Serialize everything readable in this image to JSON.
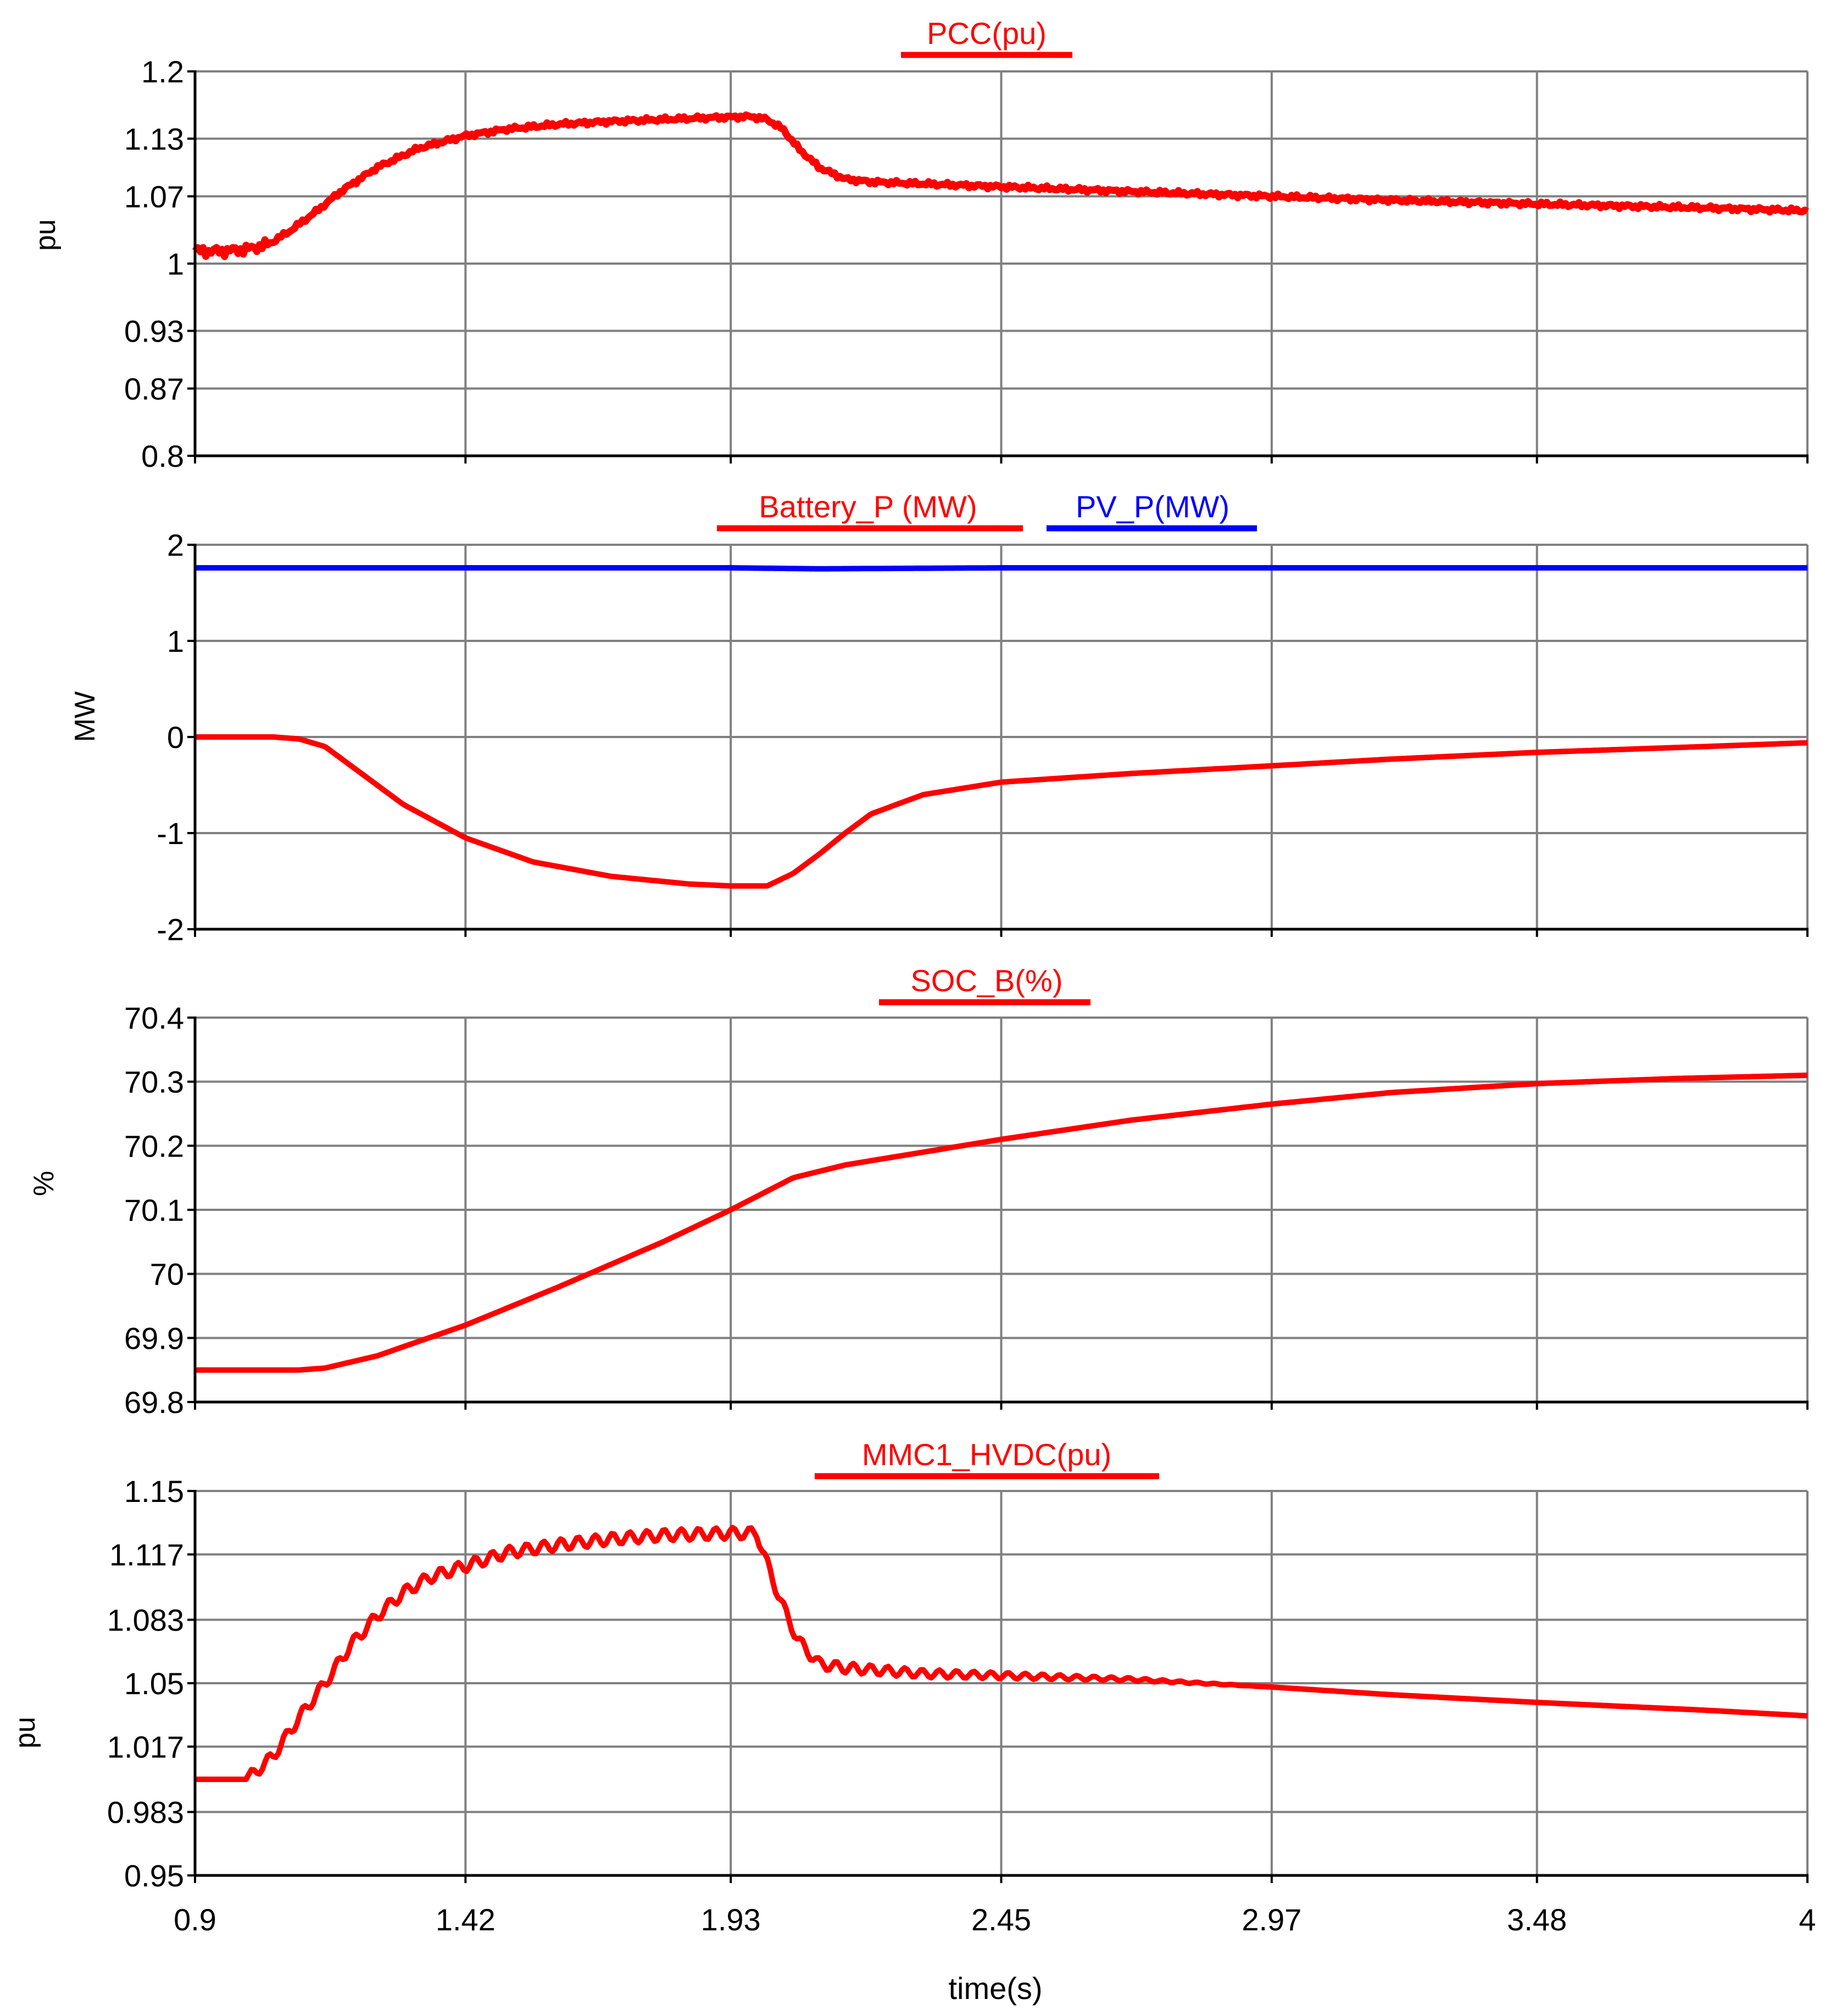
{
  "chart_data": [
    {
      "type": "line",
      "title": "PCC(pu)",
      "ylabel": "pu",
      "xlabel": "",
      "ylim": [
        0.8,
        1.2
      ],
      "xlim": [
        0.9,
        4
      ],
      "yticks": [
        "1.2",
        "1.13",
        "1.07",
        "1",
        "0.93",
        "0.87",
        "0.8"
      ],
      "xticks": [
        "0.9",
        "1.42",
        "1.93",
        "2.45",
        "2.97",
        "3.48",
        "4"
      ],
      "grid": true,
      "series": [
        {
          "name": "PCC(pu)",
          "color": "#ff0000",
          "x": [
            0.9,
            0.95,
            1.0,
            1.04,
            1.08,
            1.13,
            1.18,
            1.25,
            1.33,
            1.42,
            1.5,
            1.6,
            1.7,
            1.8,
            1.9,
            1.97,
            2.0,
            2.03,
            2.06,
            2.1,
            2.15,
            2.2,
            2.3,
            2.45,
            2.7,
            2.97,
            3.2,
            3.48,
            3.8,
            4.0
          ],
          "values": [
            1.013,
            1.013,
            1.015,
            1.02,
            1.033,
            1.053,
            1.075,
            1.1,
            1.12,
            1.133,
            1.14,
            1.145,
            1.148,
            1.15,
            1.152,
            1.153,
            1.15,
            1.14,
            1.12,
            1.1,
            1.088,
            1.085,
            1.083,
            1.08,
            1.075,
            1.07,
            1.066,
            1.062,
            1.058,
            1.055
          ],
          "noise": 0.006
        }
      ]
    },
    {
      "type": "line",
      "title": "",
      "ylabel": "MW",
      "xlabel": "",
      "ylim": [
        -2,
        2
      ],
      "xlim": [
        0.9,
        4
      ],
      "yticks": [
        "2",
        "1",
        "0",
        "-1",
        "-2"
      ],
      "xticks": [
        "0.9",
        "1.42",
        "1.93",
        "2.45",
        "2.97",
        "3.48",
        "4"
      ],
      "grid": true,
      "series": [
        {
          "name": "Battery_P (MW)",
          "color": "#ff0000",
          "x": [
            0.9,
            1.05,
            1.1,
            1.15,
            1.2,
            1.3,
            1.42,
            1.55,
            1.7,
            1.85,
            1.93,
            2.0,
            2.05,
            2.1,
            2.15,
            2.2,
            2.3,
            2.45,
            2.7,
            2.97,
            3.2,
            3.48,
            3.8,
            4.0
          ],
          "values": [
            0.0,
            0.0,
            -0.02,
            -0.1,
            -0.3,
            -0.7,
            -1.05,
            -1.3,
            -1.45,
            -1.53,
            -1.55,
            -1.55,
            -1.42,
            -1.22,
            -1.0,
            -0.8,
            -0.6,
            -0.47,
            -0.38,
            -0.3,
            -0.23,
            -0.16,
            -0.1,
            -0.06
          ]
        },
        {
          "name": "PV_P(MW)",
          "color": "#0000ff",
          "x": [
            0.9,
            1.5,
            1.93,
            2.1,
            2.45,
            3.0,
            3.5,
            4.0
          ],
          "values": [
            1.76,
            1.76,
            1.76,
            1.75,
            1.76,
            1.76,
            1.76,
            1.76
          ]
        }
      ]
    },
    {
      "type": "line",
      "title": "SOC_B(%)",
      "ylabel": "%",
      "xlabel": "",
      "ylim": [
        69.8,
        70.4
      ],
      "xlim": [
        0.9,
        4
      ],
      "yticks": [
        "70.4",
        "70.3",
        "70.2",
        "70.1",
        "70",
        "69.9",
        "69.8"
      ],
      "xticks": [
        "0.9",
        "1.42",
        "1.93",
        "2.45",
        "2.97",
        "3.48",
        "4"
      ],
      "grid": true,
      "series": [
        {
          "name": "SOC_B(%)",
          "color": "#ff0000",
          "x": [
            0.9,
            1.1,
            1.15,
            1.25,
            1.42,
            1.6,
            1.8,
            1.93,
            2.05,
            2.15,
            2.3,
            2.45,
            2.7,
            2.97,
            3.2,
            3.48,
            3.75,
            4.0
          ],
          "values": [
            69.85,
            69.85,
            69.853,
            69.872,
            69.92,
            69.98,
            70.05,
            70.1,
            70.15,
            70.17,
            70.19,
            70.21,
            70.24,
            70.265,
            70.283,
            70.297,
            70.305,
            70.31
          ]
        }
      ]
    },
    {
      "type": "line",
      "title": "MMC1_HVDC(pu)",
      "ylabel": "pu",
      "xlabel": "time(s)",
      "ylim": [
        0.95,
        1.15
      ],
      "xlim": [
        0.9,
        4
      ],
      "yticks": [
        "1.15",
        "1.117",
        "1.083",
        "1.05",
        "1.017",
        "0.983",
        "0.95"
      ],
      "xticks": [
        "0.9",
        "1.42",
        "1.93",
        "2.45",
        "2.97",
        "3.48",
        "4"
      ],
      "grid": true,
      "series": [
        {
          "name": "MMC1_HVDC(pu)",
          "color": "#ff0000",
          "x": [
            0.9,
            1.0,
            1.05,
            1.1,
            1.15,
            1.2,
            1.25,
            1.3,
            1.35,
            1.42,
            1.5,
            1.6,
            1.7,
            1.8,
            1.93,
            1.98,
            2.0,
            2.03,
            2.06,
            2.1,
            2.15,
            2.2,
            2.3,
            2.45,
            2.7,
            2.97,
            3.2,
            3.48,
            3.8,
            4.0
          ],
          "values": [
            1.0,
            1.0,
            1.012,
            1.032,
            1.05,
            1.07,
            1.085,
            1.097,
            1.105,
            1.111,
            1.118,
            1.122,
            1.125,
            1.127,
            1.128,
            1.128,
            1.112,
            1.09,
            1.072,
            1.06,
            1.058,
            1.057,
            1.055,
            1.054,
            1.052,
            1.048,
            1.044,
            1.04,
            1.036,
            1.033
          ],
          "ripple": 0.003
        }
      ]
    }
  ],
  "legend_labels": [
    "Battery_P (MW)",
    "PV_P(MW)"
  ],
  "colors": {
    "grid": "#808080",
    "axis": "#000000",
    "red": "#ff0000",
    "blue": "#0000ff"
  }
}
